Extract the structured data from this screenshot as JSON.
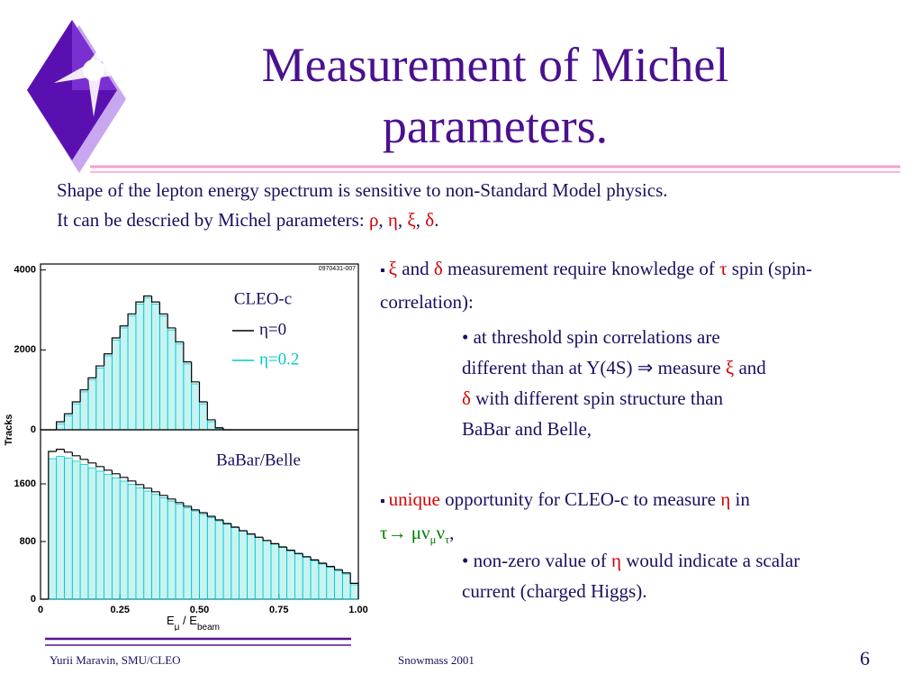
{
  "title": "Measurement of Michel parameters.",
  "intro": {
    "line1": "Shape of the lepton energy spectrum is sensitive to non-Standard Model physics.",
    "line2": [
      "It can be descried by Michel parameters: ",
      "ρ",
      ", ",
      "η",
      ", ",
      "ξ",
      ", ",
      "δ",
      "."
    ]
  },
  "bullet1": [
    "ξ",
    " and ",
    "δ",
    " measurement require knowledge of ",
    "τ",
    " spin (spin-correlation):"
  ],
  "sub1": [
    "at threshold spin correlations are different than at Y(4S) ⇒ measure ",
    "ξ",
    " and ",
    "δ",
    " with different spin structure than BaBar and Belle,"
  ],
  "bullet2": [
    "unique",
    " opportunity for CLEO-c to measure ",
    "η",
    " in",
    "τ→ μν",
    "μ",
    "ν",
    "τ",
    ","
  ],
  "sub2": [
    "non-zero value of ",
    "η",
    " would indicate a scalar current (charged Higgs)."
  ],
  "footer": {
    "author": "Yurii Maravin, SMU/CLEO",
    "event": "Snowmass 2001",
    "page": "6"
  },
  "chart_data": [
    {
      "type": "histogram",
      "id_label": "0970431-007",
      "annotation": "CLEO-c",
      "ylabel": "Tracks",
      "legend": "top-right",
      "bins": [
        0,
        0.025,
        0.05,
        0.075,
        0.1,
        0.125,
        0.15,
        0.175,
        0.2,
        0.225,
        0.25,
        0.275,
        0.3,
        0.325,
        0.35,
        0.375,
        0.4,
        0.425,
        0.45,
        0.475,
        0.5,
        0.525,
        0.55,
        0.575,
        0.6,
        0.625,
        0.65,
        0.675,
        0.7,
        0.725,
        0.75,
        0.775,
        0.8,
        0.825,
        0.85,
        0.875,
        0.9,
        0.925,
        0.95,
        0.975,
        1
      ],
      "series": [
        {
          "name": "η=0",
          "color": "#000000",
          "values": [
            0,
            0,
            200,
            400,
            700,
            1000,
            1300,
            1600,
            1900,
            2300,
            2600,
            2900,
            3200,
            3350,
            3200,
            2900,
            2550,
            2200,
            1700,
            1200,
            700,
            250,
            50,
            0,
            0,
            0,
            0,
            0,
            0,
            0,
            0,
            0,
            0,
            0,
            0,
            0,
            0,
            0,
            0,
            0
          ]
        },
        {
          "name": "η=0.2",
          "color": "#00c8c8",
          "filled": true,
          "values": [
            0,
            0,
            150,
            350,
            650,
            950,
            1250,
            1550,
            1850,
            2250,
            2550,
            2850,
            3150,
            3300,
            3150,
            2850,
            2500,
            2150,
            1650,
            1150,
            650,
            200,
            30,
            0,
            0,
            0,
            0,
            0,
            0,
            0,
            0,
            0,
            0,
            0,
            0,
            0,
            0,
            0,
            0,
            0
          ]
        }
      ],
      "xlim": [
        0,
        1
      ],
      "ylim": [
        0,
        4150
      ],
      "yticks": [
        0,
        2000,
        4000
      ]
    },
    {
      "type": "histogram",
      "annotation": "BaBar/Belle",
      "xlabel": [
        "E",
        "μ",
        " / E",
        "beam"
      ],
      "bins": [
        0,
        0.025,
        0.05,
        0.075,
        0.1,
        0.125,
        0.15,
        0.175,
        0.2,
        0.225,
        0.25,
        0.275,
        0.3,
        0.325,
        0.35,
        0.375,
        0.4,
        0.425,
        0.45,
        0.475,
        0.5,
        0.525,
        0.55,
        0.575,
        0.6,
        0.625,
        0.65,
        0.675,
        0.7,
        0.725,
        0.75,
        0.775,
        0.8,
        0.825,
        0.85,
        0.875,
        0.9,
        0.925,
        0.95,
        0.975,
        1
      ],
      "series": [
        {
          "color": "#000000",
          "values": [
            0,
            2050,
            2080,
            2040,
            1990,
            1940,
            1890,
            1840,
            1790,
            1740,
            1690,
            1640,
            1590,
            1540,
            1490,
            1440,
            1390,
            1340,
            1290,
            1240,
            1200,
            1150,
            1100,
            1050,
            1000,
            950,
            905,
            860,
            815,
            770,
            725,
            680,
            635,
            590,
            545,
            500,
            455,
            410,
            365,
            220
          ]
        },
        {
          "color": "#00c8c8",
          "filled": true,
          "values": [
            0,
            1950,
            1980,
            1960,
            1914,
            1868,
            1822,
            1776,
            1730,
            1684,
            1638,
            1592,
            1546,
            1500,
            1454,
            1408,
            1362,
            1316,
            1270,
            1224,
            1178,
            1132,
            1086,
            1040,
            994,
            948,
            902,
            856,
            810,
            764,
            718,
            672,
            626,
            580,
            534,
            488,
            442,
            396,
            350,
            200
          ]
        }
      ],
      "xlim": [
        0,
        1
      ],
      "ylim": [
        0,
        2350
      ],
      "yticks": [
        0,
        800,
        1600
      ],
      "xticks": [
        0,
        0.25,
        {
          "value": 0.5,
          "label": "0.50"
        },
        0.75,
        {
          "value": 1,
          "label": "1.00"
        }
      ]
    }
  ]
}
